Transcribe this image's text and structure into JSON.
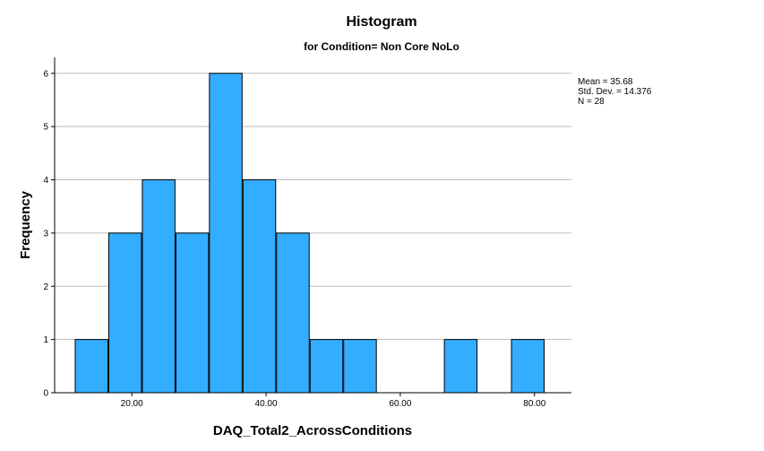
{
  "chart_data": {
    "type": "bar",
    "title": "Histogram",
    "subtitle": "for Condition= Non Core NoLo",
    "xlabel": "DAQ_Total2_AcrossConditions",
    "ylabel": "Frequency",
    "bin_width": 5,
    "bins": [
      {
        "start": 11.5,
        "end": 16.5,
        "count": 1
      },
      {
        "start": 16.5,
        "end": 21.5,
        "count": 3
      },
      {
        "start": 21.5,
        "end": 26.5,
        "count": 4
      },
      {
        "start": 26.5,
        "end": 31.5,
        "count": 3
      },
      {
        "start": 31.5,
        "end": 36.5,
        "count": 6
      },
      {
        "start": 36.5,
        "end": 41.5,
        "count": 4
      },
      {
        "start": 41.5,
        "end": 46.5,
        "count": 3
      },
      {
        "start": 46.5,
        "end": 51.5,
        "count": 1
      },
      {
        "start": 51.5,
        "end": 56.5,
        "count": 1
      },
      {
        "start": 66.5,
        "end": 71.5,
        "count": 1
      },
      {
        "start": 76.5,
        "end": 81.5,
        "count": 1
      }
    ],
    "xlim": [
      8.5,
      85.5
    ],
    "ylim": [
      0,
      6.3
    ],
    "x_ticks": [
      20,
      40,
      60,
      80
    ],
    "x_tick_labels": [
      "20.00",
      "40.00",
      "60.00",
      "80.00"
    ],
    "y_ticks": [
      0,
      1,
      2,
      3,
      4,
      5,
      6
    ],
    "y_tick_labels": [
      "0",
      "1",
      "2",
      "3",
      "4",
      "5",
      "6"
    ],
    "grid": "horizontal",
    "stats": {
      "mean": "Mean = 35.68",
      "std_dev": "Std. Dev. = 14.376",
      "n": "N = 28"
    },
    "colors": {
      "bar_fill": "#33adff",
      "bar_edge": "#000000",
      "grid": "#bdbdbd"
    }
  }
}
